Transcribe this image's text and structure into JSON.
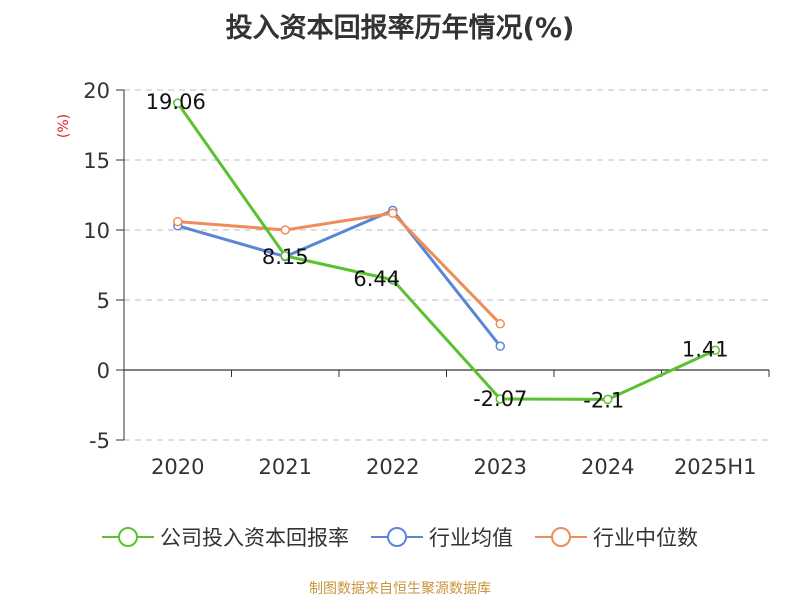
{
  "title": "投入资本回报率历年情况(%)",
  "y_unit": "(%)",
  "source": "制图数据来自恒生聚源数据库",
  "chart_data": {
    "type": "line",
    "title": "投入资本回报率历年情况(%)",
    "categories": [
      "2020",
      "2021",
      "2022",
      "2023",
      "2024",
      "2025H1"
    ],
    "ylim": [
      -5,
      20
    ],
    "yticks": [
      -5,
      0,
      5,
      10,
      15,
      20
    ],
    "grid": true,
    "legend_position": "bottom",
    "series": [
      {
        "name": "公司投入资本回报率",
        "color": "#5bc12e",
        "values": [
          19.06,
          8.15,
          6.44,
          -2.07,
          -2.1,
          1.41
        ],
        "labels": [
          "19.06",
          "8.15",
          "6.44",
          "-2.07",
          "-2.1",
          "1.41"
        ]
      },
      {
        "name": "行业均值",
        "color": "#5b86d8",
        "values": [
          10.3,
          8.1,
          11.4,
          1.7,
          null,
          null
        ]
      },
      {
        "name": "行业中位数",
        "color": "#f08c5a",
        "values": [
          10.6,
          10.0,
          11.2,
          3.3,
          null,
          null
        ]
      }
    ]
  }
}
